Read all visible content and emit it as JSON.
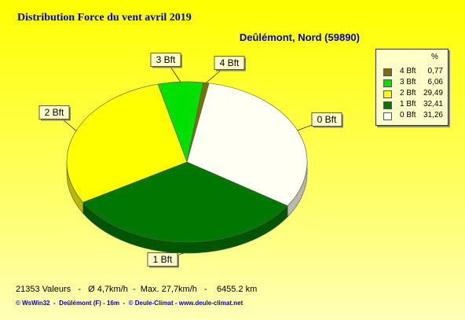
{
  "title": "Distribution Force du vent  avril 2019",
  "station": "Deûlémont, Nord (59890)",
  "legend_header": "%",
  "stats": "21353 Valeurs   -   Ø 4,7km/h  -  Max. 27,7km/h   -    6455.2 km",
  "credit": "© WsWin32  -  Deûlémont (F) - 16m  -  © Deule-Climat - www.deule-climat.net",
  "chart_data": {
    "type": "pie",
    "series": [
      {
        "label": "0 Bft",
        "legend_label": "0 Bft",
        "value_text": "31,26",
        "value": 31.26,
        "color": "#fffff4"
      },
      {
        "label": "1 Bft",
        "legend_label": "1 Bft",
        "value_text": "32,41",
        "value": 32.41,
        "color": "#007800"
      },
      {
        "label": "2 Bft",
        "legend_label": "2 Bft",
        "value_text": "29,49",
        "value": 29.49,
        "color": "#ffff00"
      },
      {
        "label": "3 Bft",
        "legend_label": "3 Bft",
        "value_text": "6,06",
        "value": 6.06,
        "color": "#00e000"
      },
      {
        "label": "4 Bft",
        "legend_label": "4 Bft",
        "value_text": "0,77",
        "value": 0.77,
        "color": "#7a7000"
      }
    ],
    "legend_order": [
      "4 Bft",
      "3 Bft",
      "2 Bft",
      "1 Bft",
      "0 Bft"
    ]
  }
}
